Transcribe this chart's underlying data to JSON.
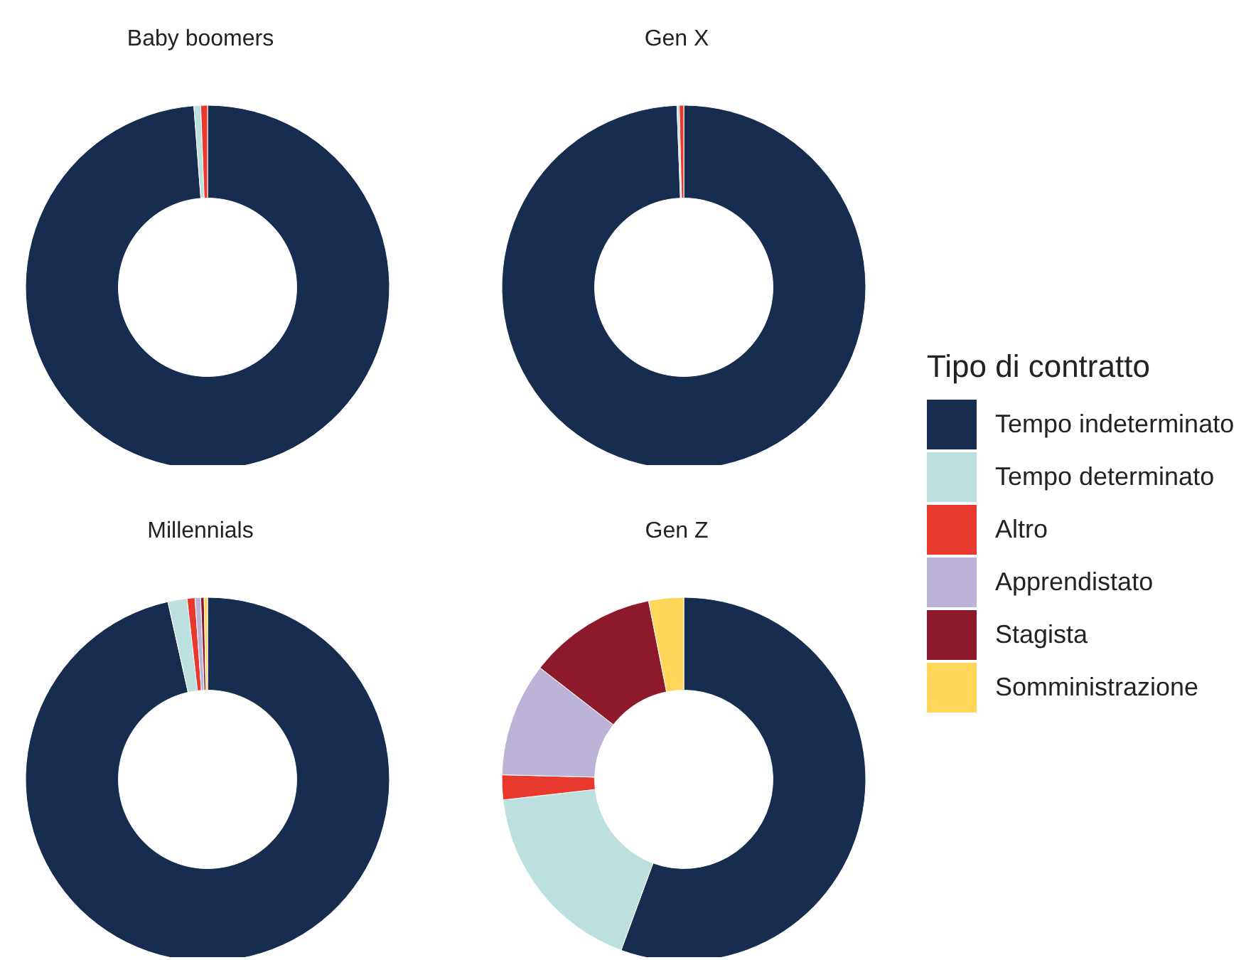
{
  "chart_data": [
    {
      "type": "donut",
      "title": "Baby boomers",
      "categories": [
        null,
        null,
        null
      ],
      "values": [
        98.8,
        0.6,
        0.6
      ],
      "colors": [
        "#172d4f",
        "#bce0dd",
        "#e8392f"
      ]
    },
    {
      "type": "donut",
      "title": "Gen X",
      "categories": [
        null,
        null,
        null
      ],
      "values": [
        99.4,
        0.2,
        0.4
      ],
      "colors": [
        "#172d4f",
        "#bce0dd",
        "#e8392f"
      ]
    },
    {
      "type": "donut",
      "title": "Millennials",
      "categories": [
        null,
        null,
        null,
        null,
        null,
        null
      ],
      "values": [
        96.5,
        1.7,
        0.7,
        0.5,
        0.3,
        0.3
      ],
      "colors": [
        "#172d4f",
        "#bce0dd",
        "#e8392f",
        "#bdb3d9",
        "#8c1a2b",
        "#ffd65a"
      ]
    },
    {
      "type": "donut",
      "title": "Gen Z",
      "categories": [
        "Tempo indeterminato",
        "Tempo determinato",
        "Altro",
        "Apprendistato",
        "Stagista",
        "Somministrazione"
      ],
      "values": [
        55.6,
        17.6,
        2.2,
        10.1,
        11.4,
        3.1
      ],
      "colors": [
        "#172d4f",
        "#bce0dd",
        "#e8392f",
        "#bdb3d9",
        "#8c1a2b",
        "#ffd65a"
      ],
      "legend": "right",
      "legend_title": "Tipo di contratto"
    }
  ]
}
